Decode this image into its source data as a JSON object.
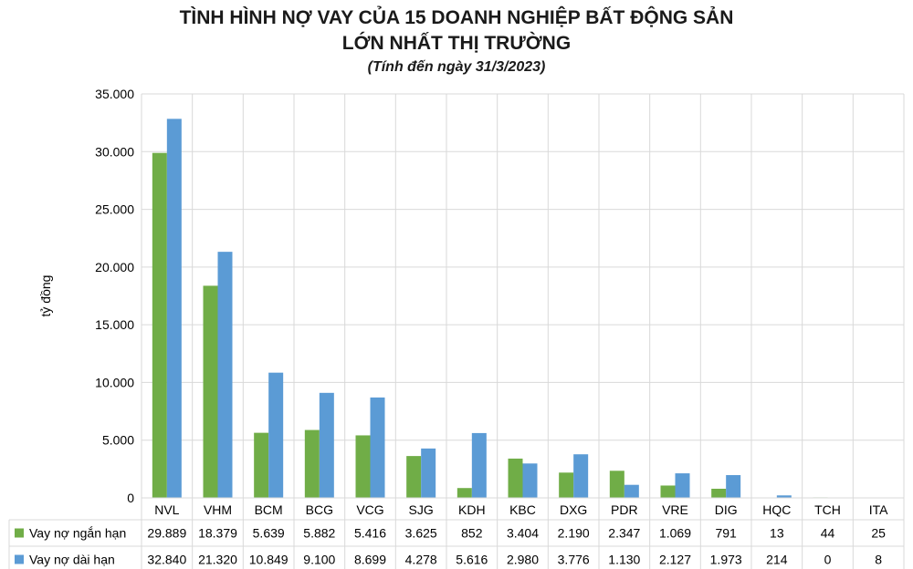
{
  "chart_data": {
    "type": "bar",
    "title_lines": [
      "TÌNH HÌNH NỢ VAY CỦA 15 DOANH NGHIỆP BẤT ĐỘNG SẢN",
      "LỚN NHẤT THỊ TRƯỜNG"
    ],
    "subtitle": "(Tính đến ngày 31/3/2023)",
    "ylabel": "tỷ đồng",
    "xlabel": "",
    "ylim": [
      0,
      35000
    ],
    "yticks": [
      "0",
      "5.000",
      "10.000",
      "15.000",
      "20.000",
      "25.000",
      "30.000",
      "35.000"
    ],
    "ytick_values": [
      0,
      5000,
      10000,
      15000,
      20000,
      25000,
      30000,
      35000
    ],
    "grid": "horizontal",
    "legend": "data-table",
    "categories": [
      "NVL",
      "VHM",
      "BCM",
      "BCG",
      "VCG",
      "SJG",
      "KDH",
      "KBC",
      "DXG",
      "PDR",
      "VRE",
      "DIG",
      "HQC",
      "TCH",
      "ITA"
    ],
    "series": [
      {
        "name": "Vay nợ ngắn hạn",
        "color": "#70ad47",
        "values": [
          29889,
          18379,
          5639,
          5882,
          5416,
          3625,
          852,
          3404,
          2190,
          2347,
          1069,
          791,
          13,
          44,
          25
        ],
        "labels": [
          "29.889",
          "18.379",
          "5.639",
          "5.882",
          "5.416",
          "3.625",
          "852",
          "3.404",
          "2.190",
          "2.347",
          "1.069",
          "791",
          "13",
          "44",
          "25"
        ]
      },
      {
        "name": "Vay nợ dài hạn",
        "color": "#5b9bd5",
        "values": [
          32840,
          21320,
          10849,
          9100,
          8699,
          4278,
          5616,
          2980,
          3776,
          1130,
          2127,
          1973,
          214,
          0,
          8
        ],
        "labels": [
          "32.840",
          "21.320",
          "10.849",
          "9.100",
          "8.699",
          "4.278",
          "5.616",
          "2.980",
          "3.776",
          "1.130",
          "2.127",
          "1.973",
          "214",
          "0",
          "8"
        ]
      }
    ]
  }
}
